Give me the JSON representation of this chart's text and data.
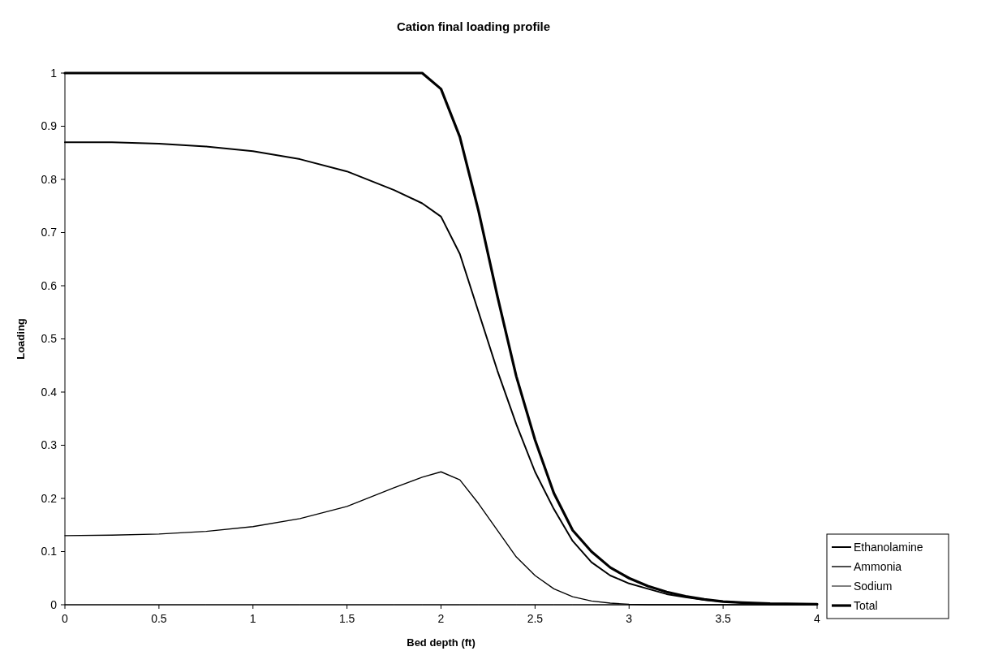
{
  "chart_data": {
    "type": "line",
    "title": "Cation final loading profile",
    "xlabel": "Bed depth (ft)",
    "ylabel": "Loading",
    "x": [
      0,
      0.25,
      0.5,
      0.75,
      1,
      1.25,
      1.5,
      1.75,
      1.9,
      2,
      2.1,
      2.2,
      2.3,
      2.4,
      2.5,
      2.6,
      2.7,
      2.8,
      2.9,
      3,
      3.1,
      3.2,
      3.3,
      3.4,
      3.5,
      3.6,
      3.75,
      4
    ],
    "series": [
      {
        "name": "Ethanolamine",
        "color": "#000000",
        "values": [
          0.87,
          0.87,
          0.867,
          0.862,
          0.853,
          0.838,
          0.815,
          0.78,
          0.755,
          0.73,
          0.66,
          0.55,
          0.44,
          0.34,
          0.25,
          0.18,
          0.12,
          0.08,
          0.055,
          0.04,
          0.03,
          0.02,
          0.014,
          0.009,
          0.006,
          0.004,
          0.002,
          0.001
        ]
      },
      {
        "name": "Ammonia",
        "color": "#000000",
        "values": [
          0.13,
          0.131,
          0.133,
          0.138,
          0.147,
          0.162,
          0.185,
          0.22,
          0.24,
          0.25,
          0.235,
          0.19,
          0.14,
          0.09,
          0.055,
          0.03,
          0.015,
          0.007,
          0.003,
          0.001,
          0,
          0,
          0,
          0,
          0,
          0,
          0,
          0
        ]
      },
      {
        "name": "Sodium",
        "color": "#000000",
        "values": [
          0,
          0,
          0,
          0,
          0,
          0,
          0,
          0,
          0,
          0,
          0,
          0,
          0,
          0,
          0,
          0,
          0,
          0,
          0,
          0,
          0,
          0,
          0,
          0,
          0,
          0,
          0,
          0
        ]
      },
      {
        "name": "Total",
        "color": "#000000",
        "values": [
          1,
          1,
          1,
          1,
          1,
          1,
          1,
          1,
          1,
          0.97,
          0.88,
          0.74,
          0.58,
          0.43,
          0.31,
          0.21,
          0.14,
          0.1,
          0.07,
          0.05,
          0.035,
          0.024,
          0.016,
          0.01,
          0.006,
          0.004,
          0.002,
          0.001
        ]
      }
    ],
    "xlim": [
      0,
      4
    ],
    "xticks": [
      0,
      0.5,
      1,
      1.5,
      2,
      2.5,
      3,
      3.5,
      4
    ],
    "ylim": [
      0,
      1
    ],
    "yticks": [
      0,
      0.1,
      0.2,
      0.3,
      0.4,
      0.5,
      0.6,
      0.7,
      0.8,
      0.9,
      1
    ],
    "legend": "right",
    "grid": false,
    "marker": "none",
    "line_style": "solid"
  }
}
